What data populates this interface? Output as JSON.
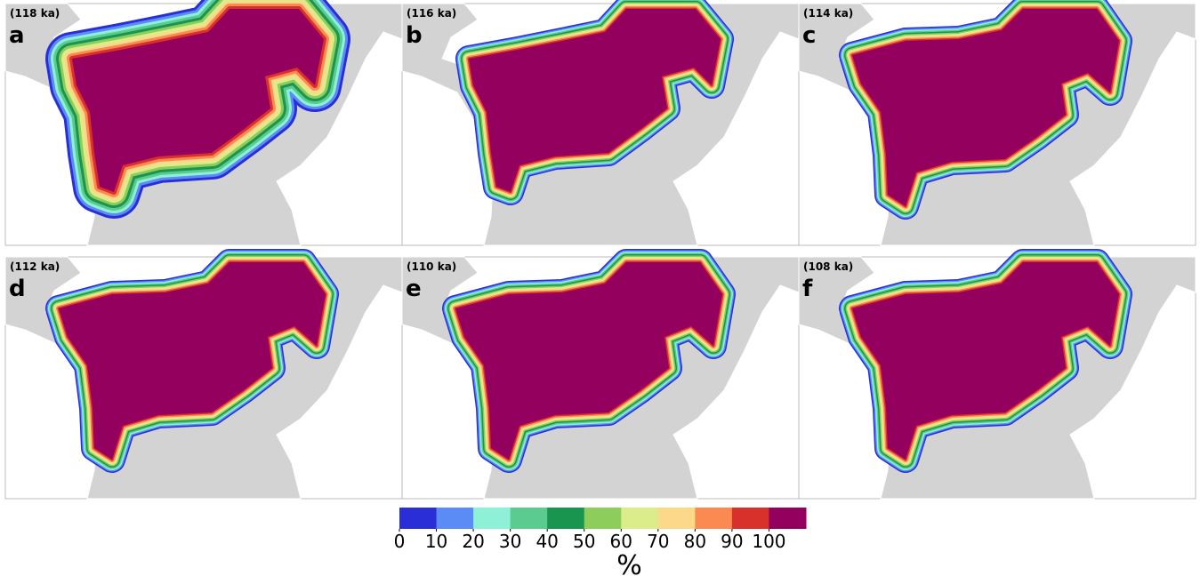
{
  "panels": [
    {
      "time": "(118 ka)",
      "letter": "a"
    },
    {
      "time": "(116 ka)",
      "letter": "b"
    },
    {
      "time": "(114 ka)",
      "letter": "c"
    },
    {
      "time": "(112 ka)",
      "letter": "d"
    },
    {
      "time": "(110 ka)",
      "letter": "e"
    },
    {
      "time": "(108 ka)",
      "letter": "f"
    }
  ],
  "colorbar": {
    "ticks": [
      0,
      10,
      20,
      30,
      40,
      50,
      60,
      70,
      80,
      90,
      100
    ],
    "colors": [
      "#2a2ed6",
      "#5b8cf5",
      "#8ff0d8",
      "#5ccb8f",
      "#1a9550",
      "#8ccd5c",
      "#dbed8a",
      "#fcd98a",
      "#fb8a52",
      "#d8302a",
      "#94005e"
    ],
    "label": "%"
  }
}
